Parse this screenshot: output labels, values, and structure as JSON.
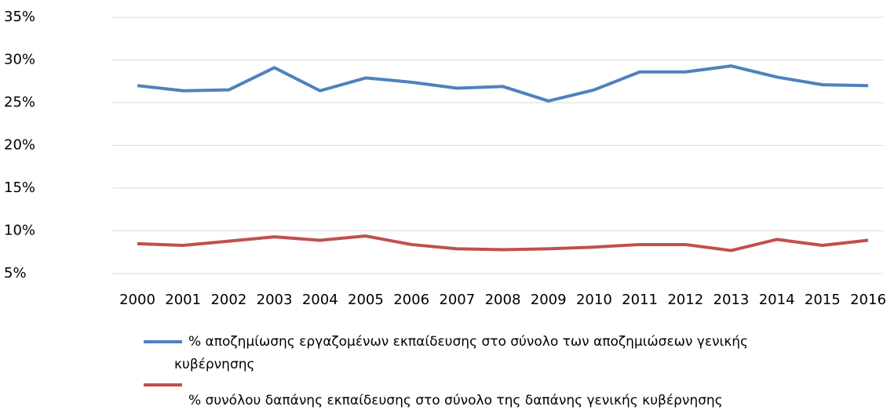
{
  "chart_data": {
    "type": "line",
    "categories": [
      "2000",
      "2001",
      "2002",
      "2003",
      "2004",
      "2005",
      "2006",
      "2007",
      "2008",
      "2009",
      "2010",
      "2011",
      "2012",
      "2013",
      "2014",
      "2015",
      "2016"
    ],
    "series": [
      {
        "name": "% αποζημίωσης εργαζομένων εκπαίδευσης στο σύνολο των αποζημιώσεων γενικής κυβέρνησης",
        "color": "#4f81bd",
        "values": [
          27.0,
          26.4,
          26.5,
          29.1,
          26.4,
          27.9,
          27.4,
          26.7,
          26.9,
          25.2,
          26.5,
          28.6,
          28.6,
          29.3,
          28.0,
          27.1,
          27.0
        ]
      },
      {
        "name": "% συνόλου δαπάνης εκπαίδευσης στο σύνολο της δαπάνης γενικής κυβέρνησης",
        "color": "#c0504d",
        "values": [
          8.5,
          8.3,
          8.8,
          9.3,
          8.9,
          9.4,
          8.4,
          7.9,
          7.8,
          7.9,
          8.1,
          8.4,
          8.4,
          7.7,
          9.0,
          8.3,
          8.9
        ]
      }
    ],
    "ylim": [
      5,
      35
    ],
    "yticks": [
      {
        "value": 5,
        "label": "5%"
      },
      {
        "value": 10,
        "label": "10%"
      },
      {
        "value": 15,
        "label": "15%"
      },
      {
        "value": 20,
        "label": "20%"
      },
      {
        "value": 25,
        "label": "25%"
      },
      {
        "value": 30,
        "label": "30%"
      },
      {
        "value": 35,
        "label": "35%"
      }
    ],
    "grid": true,
    "legend": "bottom"
  }
}
